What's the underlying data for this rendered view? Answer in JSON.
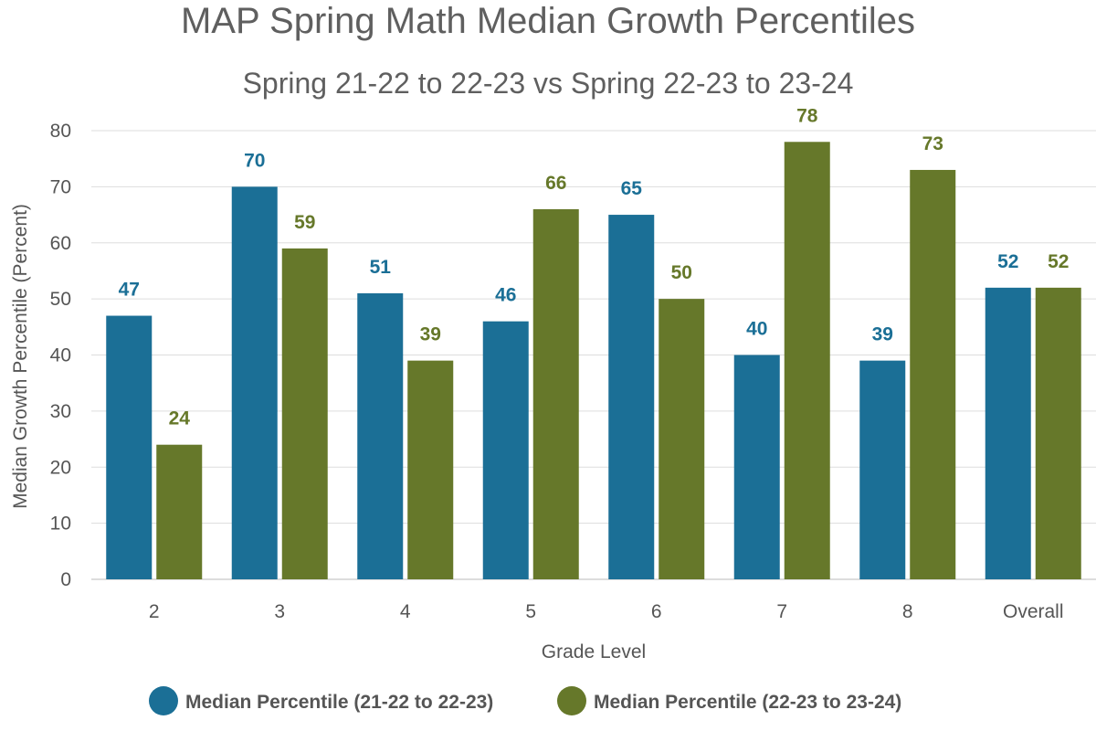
{
  "chart_data": {
    "type": "bar",
    "title": "MAP Spring Math Median Growth Percentiles",
    "subtitle": "Spring 21-22 to 22-23 vs Spring 22-23 to 23-24",
    "xlabel": "Grade Level",
    "ylabel": "Median Growth Percentile  (Percent)",
    "ylim": [
      0,
      80
    ],
    "yticks": [
      0,
      10,
      20,
      30,
      40,
      50,
      60,
      70,
      80
    ],
    "grid": true,
    "legend_position": "bottom-center",
    "categories": [
      "2",
      "3",
      "4",
      "5",
      "6",
      "7",
      "8",
      "Overall"
    ],
    "series": [
      {
        "name": "Median Percentile (21-22 to 22-23)",
        "color": "#1b6f96",
        "values": [
          47,
          70,
          51,
          46,
          65,
          40,
          39,
          52
        ]
      },
      {
        "name": "Median Percentile (22-23 to 23-24)",
        "color": "#66782a",
        "values": [
          24,
          59,
          39,
          66,
          50,
          78,
          73,
          52
        ]
      }
    ]
  }
}
